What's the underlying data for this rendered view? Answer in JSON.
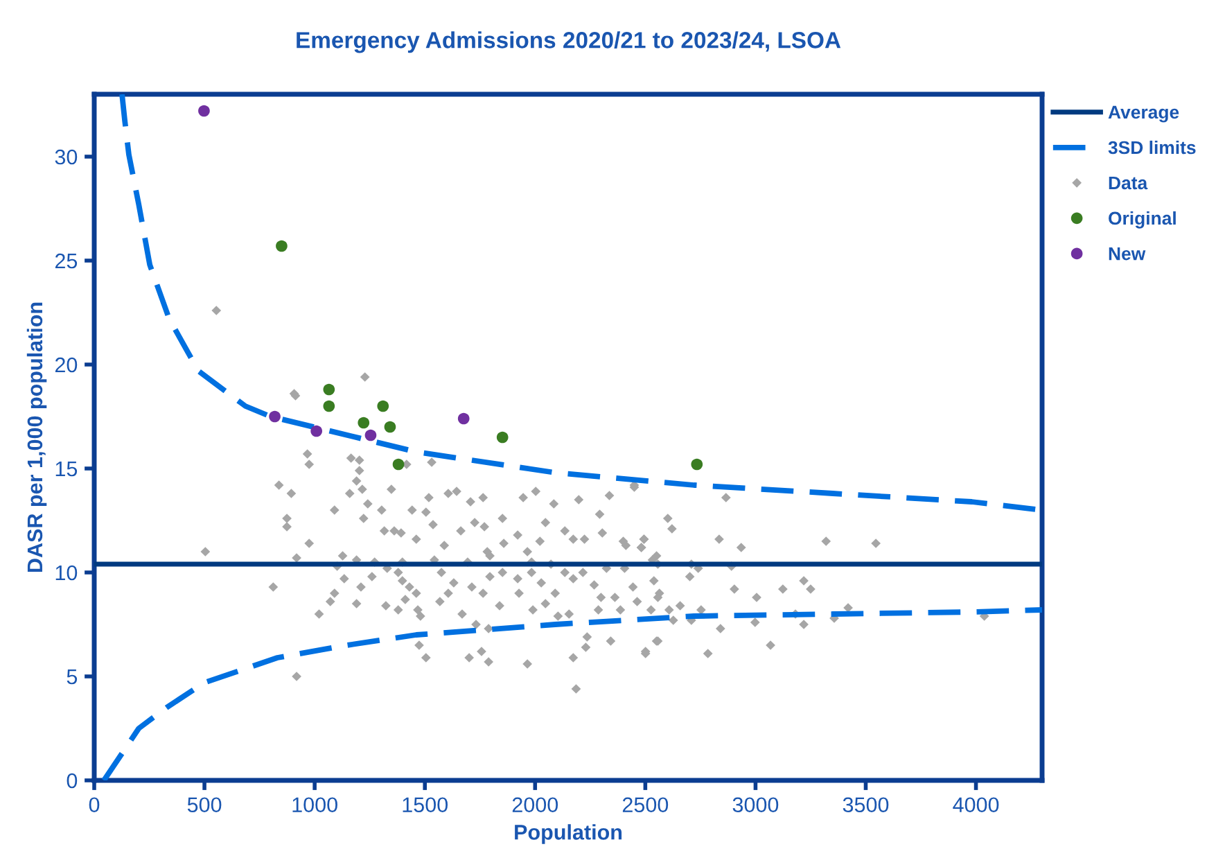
{
  "chart_data": {
    "type": "scatter",
    "title": "Emergency Admissions 2020/21 to 2023/24, LSOA",
    "xlabel": "Population",
    "ylabel": "DASR per 1,000 population",
    "xlim": [
      0,
      4300
    ],
    "ylim": [
      0,
      33
    ],
    "xticks": [
      0,
      500,
      1000,
      1500,
      2000,
      2500,
      3000,
      3500,
      4000
    ],
    "yticks": [
      0,
      5,
      10,
      15,
      20,
      25,
      30
    ],
    "grid": false,
    "legend": "right",
    "series": [
      {
        "name": "Average",
        "type": "line",
        "line_style": "solid",
        "marker": "none",
        "color": "#003a80",
        "x": [
          0,
          4300
        ],
        "values": [
          10.4,
          10.4
        ]
      },
      {
        "name": "3SD limits",
        "type": "line",
        "line_style": "dashed",
        "marker": "none",
        "color": "#0070e0",
        "x": [
          126,
          139,
          157,
          202,
          252,
          340,
          472,
          686,
          800,
          1461,
          2091,
          2721,
          3351,
          3981,
          4300
        ],
        "values": [
          33,
          31.7,
          30.1,
          27.7,
          24.8,
          22.2,
          19.7,
          18.0,
          17.5,
          15.8,
          14.8,
          14.2,
          13.8,
          13.4,
          13.0
        ]
      },
      {
        "type": "line",
        "line_style": "dashed",
        "marker": "none",
        "color": "#0070e0",
        "x": [
          44,
          139,
          202,
          328,
          500,
          831,
          1146,
          1461,
          2091,
          2721,
          3351,
          3981,
          4300
        ],
        "values": [
          0,
          1.5,
          2.5,
          3.5,
          4.7,
          5.9,
          6.5,
          7.0,
          7.5,
          7.9,
          8.0,
          8.1,
          8.2
        ]
      },
      {
        "name": "Data",
        "marker": "diamond",
        "color": "#a6a6a6",
        "x": [
          1228,
          907,
          838,
          894,
          874,
          874,
          975,
          918,
          812,
          1020,
          918,
          967,
          975,
          1165,
          1203,
          1203,
          1190,
          1159,
          1216,
          1348,
          1417,
          1531,
          1090,
          1241,
          1222,
          1304,
          1442,
          1518,
          1606,
          1644,
          1707,
          1764,
          1852,
          1946,
          2003,
          2085,
          2198,
          2337,
          2450,
          2293,
          2047,
          1921,
          2135,
          2173,
          2224,
          2305,
          2494,
          2412,
          2482,
          2532,
          1316,
          1361,
          1392,
          1461,
          1505,
          1537,
          1588,
          1663,
          1726,
          1770,
          1783,
          1795,
          1858,
          1965,
          2022,
          2072,
          1984,
          1694,
          1543,
          1398,
          1272,
          1190,
          1127,
          1102,
          1134,
          1071,
          1090,
          1190,
          1210,
          1260,
          1329,
          1379,
          1398,
          1430,
          1468,
          1480,
          1379,
          1323,
          1411,
          1461,
          1568,
          1606,
          1631,
          1575,
          1669,
          1732,
          1713,
          1795,
          1852,
          1764,
          1839,
          1789,
          1757,
          1701,
          1789,
          1505,
          1474,
          1921,
          1927,
          1984,
          2028,
          1990,
          2047,
          2091,
          2135,
          2173,
          2217,
          2268,
          2299,
          2287,
          2236,
          2230,
          2173,
          2186,
          1965,
          2104,
          2154,
          2362,
          2387,
          2444,
          2463,
          2526,
          2501,
          2551,
          2557,
          2343,
          2324,
          2406,
          2557,
          2450,
          2866,
          2602,
          2621,
          2400,
          2494,
          2482,
          2551,
          2835,
          2935,
          3320,
          3546,
          2709,
          2740,
          2891,
          2702,
          2539,
          3219,
          3250,
          2904,
          3005,
          3124,
          2658,
          2753,
          2564,
          2608,
          2627,
          2709,
          2841,
          2998,
          3181,
          3219,
          3357,
          3420,
          4038,
          3068,
          2784,
          2501,
          2557,
          554,
          504,
          913
        ],
        "values": [
          19.4,
          18.6,
          14.2,
          13.8,
          12.6,
          12.2,
          11.4,
          10.7,
          9.3,
          8.0,
          5.0,
          15.7,
          15.2,
          15.5,
          15.4,
          14.9,
          14.4,
          13.8,
          14.0,
          14.0,
          15.2,
          15.3,
          13.0,
          13.3,
          12.6,
          13.0,
          13.0,
          13.6,
          13.8,
          13.9,
          13.4,
          13.6,
          12.6,
          13.6,
          13.9,
          13.3,
          13.5,
          13.7,
          14.1,
          12.8,
          12.4,
          11.8,
          12.0,
          11.6,
          11.6,
          11.9,
          11.6,
          11.3,
          11.2,
          10.6,
          12.0,
          12.0,
          11.9,
          11.6,
          12.9,
          12.3,
          11.3,
          12.0,
          12.4,
          12.2,
          11.0,
          10.8,
          11.4,
          11.0,
          11.5,
          10.4,
          10.5,
          10.5,
          10.6,
          10.5,
          10.5,
          10.6,
          10.8,
          10.3,
          9.7,
          8.6,
          9.0,
          8.5,
          9.3,
          9.8,
          10.2,
          10.0,
          9.6,
          9.3,
          8.2,
          7.9,
          8.2,
          8.4,
          8.7,
          9.0,
          8.6,
          9.0,
          9.5,
          10.0,
          8.0,
          7.5,
          9.3,
          9.8,
          10.0,
          9.0,
          8.4,
          7.3,
          6.2,
          5.9,
          5.7,
          5.9,
          6.5,
          9.7,
          9.0,
          10.0,
          9.5,
          8.2,
          8.5,
          9.0,
          10.0,
          9.7,
          10.0,
          9.4,
          8.8,
          8.2,
          6.9,
          6.4,
          5.9,
          4.4,
          5.6,
          7.9,
          8.0,
          8.8,
          8.2,
          9.3,
          8.6,
          8.2,
          6.2,
          6.7,
          8.8,
          6.7,
          10.2,
          10.2,
          10.4,
          14.2,
          13.6,
          12.6,
          12.1,
          11.5,
          11.6,
          11.2,
          10.8,
          11.6,
          11.2,
          11.5,
          11.4,
          10.4,
          10.2,
          10.3,
          9.8,
          9.6,
          9.6,
          9.2,
          9.2,
          8.8,
          9.2,
          8.4,
          8.2,
          9.0,
          8.2,
          7.7,
          7.7,
          7.3,
          7.6,
          8.0,
          7.5,
          7.8,
          8.3,
          7.9,
          6.5,
          6.1,
          6.1,
          6.7,
          22.6,
          11.0,
          18.5
        ]
      },
      {
        "name": "Original",
        "marker": "circle",
        "color": "#3a7d22",
        "x": [
          850,
          1065,
          1065,
          1222,
          1310,
          1342,
          1380,
          1852,
          2734
        ],
        "values": [
          25.7,
          18.8,
          18.0,
          17.2,
          18.0,
          17.0,
          15.2,
          16.5,
          15.2
        ]
      },
      {
        "name": "New",
        "marker": "circle",
        "color": "#7030a0",
        "x": [
          498,
          819,
          1008,
          1254,
          1676
        ],
        "values": [
          32.2,
          17.5,
          16.8,
          16.6,
          17.4
        ]
      }
    ]
  }
}
